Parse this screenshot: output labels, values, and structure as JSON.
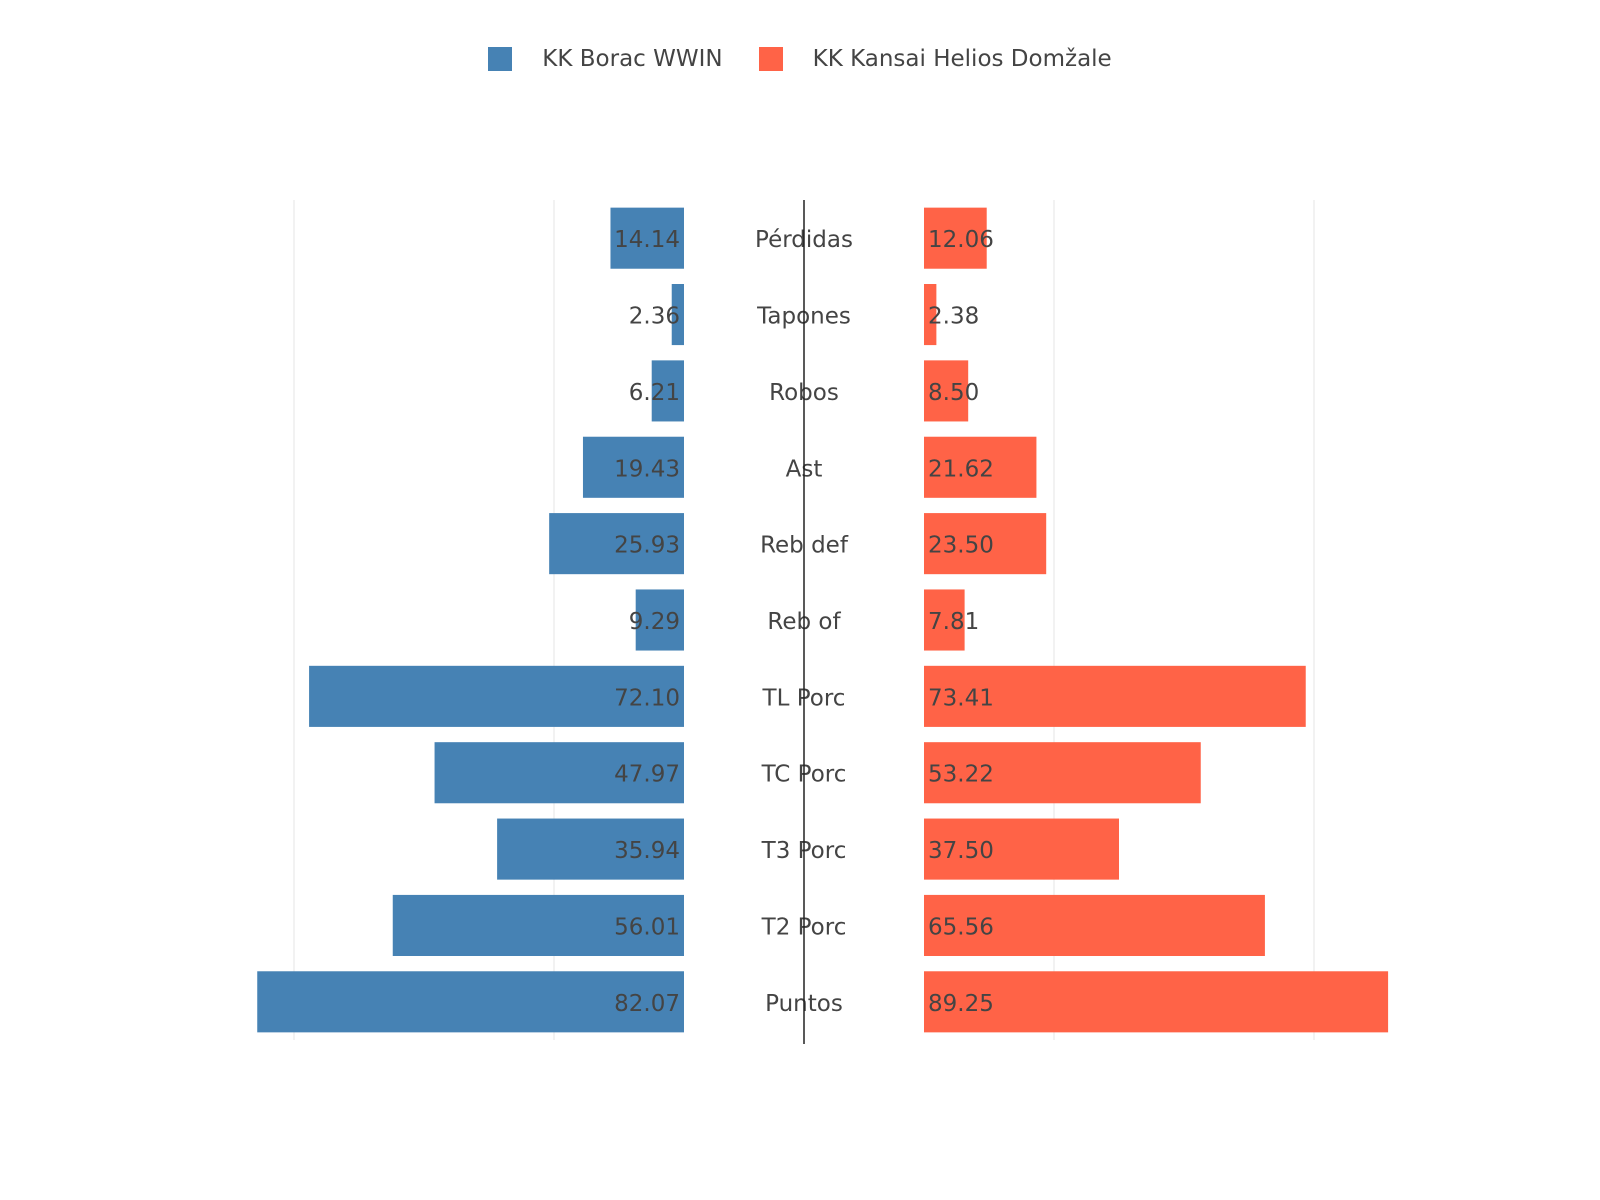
{
  "chart_data": {
    "type": "bar",
    "orientation": "horizontal",
    "layout": "butterfly",
    "categories": [
      "Puntos",
      "T2 Porc",
      "T3 Porc",
      "TC Porc",
      "TL Porc",
      "Reb of",
      "Reb def",
      "Ast",
      "Robos",
      "Tapones",
      "Pérdidas"
    ],
    "series": [
      {
        "name": "KK Borac WWIN",
        "color": "#4682B4",
        "side": "left",
        "values": [
          82.07,
          56.01,
          35.94,
          47.97,
          72.1,
          9.29,
          25.93,
          19.43,
          6.21,
          2.36,
          14.14
        ],
        "labels": [
          "82.07",
          "56.01",
          "35.94",
          "47.97",
          "72.10",
          "9.29",
          "25.93",
          "19.43",
          "6.21",
          "2.36",
          "14.14"
        ]
      },
      {
        "name": "KK Kansai Helios Domžale",
        "color": "#FF6347",
        "side": "right",
        "values": [
          89.25,
          65.56,
          37.5,
          53.22,
          73.41,
          7.81,
          23.5,
          21.62,
          8.5,
          2.38,
          12.06
        ],
        "labels": [
          "89.25",
          "65.56",
          "37.50",
          "53.22",
          "73.41",
          "7.81",
          "23.50",
          "21.62",
          "8.50",
          "2.38",
          "12.06"
        ]
      }
    ],
    "xlim": [
      0,
      100
    ],
    "grid": true,
    "legend_position": "top-center",
    "title": "",
    "xlabel": "",
    "ylabel": ""
  }
}
